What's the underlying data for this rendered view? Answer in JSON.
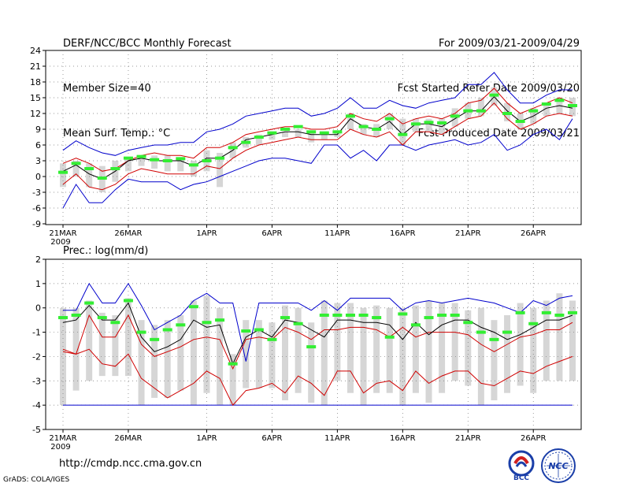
{
  "header": {
    "title": "DERF/NCC/BCC Monthly Forecast",
    "member_size": "Member Size=40",
    "variable": "Mean Surf. Temp.: °C",
    "forecast_period": "For 2009/03/21-2009/04/29",
    "start_date": "Fcst Started Refer Date 2009/03/20",
    "produced_date": "Fcst Produced Date 2009/03/21"
  },
  "footer": {
    "url": "http://cmdp.ncc.cma.gov.cn",
    "credit": "GrADS: COLA/IGES",
    "logo_bcc": "BCC",
    "logo_ncc": "NCC"
  },
  "colors": {
    "envelope": "#0000cc",
    "percentile": "#d00000",
    "mean": "#000000",
    "median": "#33ee33",
    "box": "#d6d6d6",
    "grid": "#777777"
  },
  "chart_data": [
    {
      "type": "box-line",
      "title": "Mean Surf. Temp.: °C",
      "xlabel": "",
      "ylabel": "°C",
      "ylim": [
        -9,
        24
      ],
      "yticks": [
        -9,
        -6,
        -3,
        0,
        3,
        6,
        9,
        12,
        15,
        18,
        21,
        24
      ],
      "xticks": [
        {
          "day": 1,
          "label": "21MAR",
          "sublabel": "2009"
        },
        {
          "day": 6,
          "label": "26MAR"
        },
        {
          "day": 12,
          "label": "1APR"
        },
        {
          "day": 17,
          "label": "6APR"
        },
        {
          "day": 22,
          "label": "11APR"
        },
        {
          "day": 27,
          "label": "16APR"
        },
        {
          "day": 32,
          "label": "21APR"
        },
        {
          "day": 37,
          "label": "26APR"
        }
      ],
      "days": 40,
      "grid": true,
      "series": [
        {
          "name": "max",
          "values": [
            5,
            6.8,
            5.5,
            4.5,
            4,
            5,
            5.5,
            6,
            6,
            6.5,
            6.5,
            8.5,
            9,
            10,
            11.5,
            12,
            12.5,
            13,
            13,
            11.5,
            12,
            13,
            15,
            13,
            13,
            14.5,
            13.5,
            13,
            14,
            14.5,
            15,
            17.5,
            17.5,
            19.8,
            16.5,
            14,
            14,
            15.5,
            16.5,
            16.5
          ]
        },
        {
          "name": "p90",
          "values": [
            2.5,
            3.5,
            2.5,
            1,
            1.5,
            3,
            4,
            4.5,
            4,
            4,
            3.5,
            5.5,
            5.5,
            6.5,
            8,
            8.5,
            9,
            9.5,
            9.5,
            9,
            9,
            9.5,
            12,
            11,
            10.5,
            12,
            10,
            11,
            11.5,
            11,
            12,
            14,
            14.5,
            16.8,
            14,
            12,
            13,
            14,
            15,
            14
          ]
        },
        {
          "name": "mean",
          "values": [
            1,
            2.2,
            0.5,
            -0.5,
            1,
            3,
            3.5,
            3,
            3,
            3,
            2,
            3.5,
            3.5,
            5,
            7,
            7.5,
            8,
            8.5,
            8.5,
            8,
            8,
            8,
            11,
            9.5,
            9,
            10.5,
            8,
            10,
            10,
            9.5,
            11,
            12.5,
            12.5,
            15.2,
            12.5,
            10.5,
            11.5,
            13,
            13.5,
            13
          ]
        },
        {
          "name": "median",
          "values": [
            0.8,
            2.5,
            1.5,
            -0.3,
            1.5,
            3.5,
            3.8,
            3.2,
            3,
            3.4,
            2.2,
            3,
            3.5,
            5.5,
            6.5,
            7.5,
            8.3,
            9,
            9.5,
            8.5,
            8.3,
            8.5,
            11.5,
            9.5,
            9,
            11,
            8,
            10,
            10.3,
            10.2,
            11.5,
            12.5,
            12.5,
            15.5,
            12,
            10.5,
            12.5,
            13.8,
            14.5,
            13.5
          ]
        },
        {
          "name": "p10",
          "values": [
            -1.5,
            0.5,
            -2,
            -2.5,
            -1.5,
            0.5,
            1.5,
            1,
            0.5,
            0.5,
            0.5,
            2,
            1.5,
            3.5,
            5,
            6,
            6.5,
            7,
            7.5,
            7,
            7,
            7,
            9,
            8,
            7.5,
            8.5,
            6,
            8.5,
            8.5,
            8,
            9.5,
            11,
            11.5,
            14,
            11,
            9,
            10,
            11.5,
            12,
            11.5
          ]
        },
        {
          "name": "min",
          "values": [
            -6,
            -1.5,
            -5,
            -5,
            -2.5,
            -0.5,
            -1,
            -1,
            -1,
            -2.5,
            -1.5,
            -1,
            0,
            1,
            2,
            3,
            3.5,
            3.5,
            3,
            2.5,
            6,
            6,
            3.5,
            5,
            3,
            6,
            6,
            5,
            6,
            6.5,
            7,
            6,
            6.5,
            8,
            5,
            6,
            8,
            9,
            7,
            11
          ]
        },
        {
          "name": "box_high",
          "values": [
            2.5,
            3,
            2.5,
            2,
            3,
            3.5,
            4,
            4,
            4,
            3.5,
            3,
            5,
            4.5,
            6.5,
            7.5,
            8,
            8.5,
            8.5,
            9,
            8.5,
            8.5,
            8.5,
            12,
            10,
            10,
            12,
            11,
            11,
            11,
            11,
            13,
            14,
            15,
            17,
            14,
            12,
            13,
            14,
            15,
            15
          ]
        },
        {
          "name": "box_low",
          "values": [
            -2,
            0,
            -2,
            -3,
            -1,
            1,
            2,
            1.5,
            1,
            1,
            0,
            1,
            -2,
            3.5,
            5.5,
            6,
            7,
            7.5,
            7.5,
            6.5,
            7,
            7.5,
            9,
            8,
            7.5,
            9,
            6,
            8.5,
            8.5,
            8,
            9.5,
            11,
            11.5,
            13.5,
            10.5,
            9,
            10,
            11.5,
            12,
            11.5
          ]
        }
      ]
    },
    {
      "type": "box-line",
      "title": "Prec.: log(mm/d)",
      "xlabel": "",
      "ylabel": "log(mm/d)",
      "ylim": [
        -5,
        2
      ],
      "yticks": [
        -5,
        -4,
        -3,
        -2,
        -1,
        0,
        1,
        2
      ],
      "xticks": [
        {
          "day": 1,
          "label": "21MAR",
          "sublabel": "2009"
        },
        {
          "day": 6,
          "label": "26MAR"
        },
        {
          "day": 12,
          "label": "1APR"
        },
        {
          "day": 17,
          "label": "6APR"
        },
        {
          "day": 22,
          "label": "11APR"
        },
        {
          "day": 27,
          "label": "16APR"
        },
        {
          "day": 32,
          "label": "21APR"
        },
        {
          "day": 37,
          "label": "26APR"
        }
      ],
      "days": 40,
      "grid": true,
      "series": [
        {
          "name": "max",
          "values": [
            -0.1,
            -0.1,
            1,
            0.2,
            0.2,
            1,
            0.1,
            -0.9,
            -0.6,
            -0.3,
            0.3,
            0.6,
            0.2,
            0.2,
            -2.2,
            0.2,
            0.2,
            0.2,
            0.2,
            -0.1,
            0.3,
            -0.1,
            0.4,
            0.4,
            0.4,
            0.4,
            -0.1,
            0.2,
            0.3,
            0.2,
            0.3,
            0.4,
            0.3,
            0.2,
            0,
            -0.2,
            0.3,
            0.1,
            0.4,
            0.5
          ]
        },
        {
          "name": "mean",
          "values": [
            -0.6,
            -0.5,
            0.1,
            -0.5,
            -0.5,
            0.2,
            -1.2,
            -1.8,
            -1.6,
            -1.3,
            -0.5,
            -0.8,
            -0.7,
            -2.3,
            -1.2,
            -0.9,
            -1.2,
            -0.5,
            -0.6,
            -0.9,
            -1.2,
            -0.5,
            -0.5,
            -0.6,
            -0.6,
            -0.7,
            -1.3,
            -0.6,
            -1.1,
            -0.7,
            -0.5,
            -0.5,
            -0.8,
            -1,
            -1.3,
            -1.1,
            -0.8,
            -0.5,
            -0.5,
            -0.3
          ]
        },
        {
          "name": "median",
          "values": [
            -0.4,
            -0.3,
            0.2,
            -0.4,
            -0.6,
            0.3,
            -1,
            -1.3,
            -0.9,
            -0.7,
            0.05,
            -0.6,
            -0.5,
            -2.3,
            -0.95,
            -0.9,
            -1.3,
            -0.4,
            -0.65,
            -1.6,
            -0.3,
            -0.3,
            -0.3,
            -0.3,
            -0.4,
            -1.2,
            -0.25,
            -0.7,
            -0.4,
            -0.3,
            -0.3,
            -0.6,
            -1,
            -1.3,
            -1,
            -0.2,
            -0.65,
            -0.2,
            -0.3,
            -0.2
          ]
        },
        {
          "name": "p10",
          "values": [
            -1.7,
            -1.9,
            -0.3,
            -1.2,
            -1.2,
            -0.3,
            -1.5,
            -2,
            -1.8,
            -1.6,
            -1.3,
            -1.2,
            -1.3,
            -2.5,
            -1.3,
            -1.2,
            -1.3,
            -0.8,
            -1,
            -1.3,
            -0.9,
            -0.9,
            -0.8,
            -0.8,
            -0.9,
            -1.2,
            -0.8,
            -1.2,
            -1,
            -1,
            -1,
            -1.1,
            -1.5,
            -1.8,
            -1.5,
            -1.2,
            -1.1,
            -0.9,
            -0.9,
            -0.6
          ]
        },
        {
          "name": "min",
          "values": [
            -1.8,
            -1.9,
            -1.7,
            -2.3,
            -2.4,
            -1.9,
            -2.9,
            -3.3,
            -3.7,
            -3.4,
            -3.1,
            -2.6,
            -2.9,
            -4,
            -3.4,
            -3.3,
            -3.1,
            -3.5,
            -2.8,
            -3.1,
            -3.6,
            -2.6,
            -2.6,
            -3.5,
            -3.1,
            -3,
            -3.4,
            -2.6,
            -3.1,
            -2.8,
            -2.6,
            -2.6,
            -3.1,
            -3.2,
            -2.9,
            -2.6,
            -2.7,
            -2.4,
            -2.2,
            -2
          ]
        },
        {
          "name": "floor",
          "values": [
            -4,
            -4,
            -4,
            -4,
            -4,
            -4,
            -4,
            -4,
            -4,
            -4,
            -4,
            -4,
            -4,
            -4,
            -4,
            -4,
            -4,
            -4,
            -4,
            -4,
            -4,
            -4,
            -4,
            -4,
            -4,
            -4,
            -4,
            -4,
            -4,
            -4,
            -4,
            -4,
            -4,
            -4,
            -4,
            -4,
            -4,
            -4,
            -4,
            -4
          ]
        },
        {
          "name": "box_high",
          "values": [
            0,
            0,
            0.3,
            -0.2,
            -0.3,
            0.4,
            -0.5,
            -0.7,
            -0.5,
            -0.3,
            0.3,
            0.5,
            0,
            -1.9,
            -0.5,
            -0.5,
            -0.6,
            0.1,
            0,
            -0.6,
            0.3,
            0.2,
            0.2,
            0,
            0.1,
            0,
            0,
            0.1,
            0.3,
            0.2,
            0.2,
            -0.1,
            0,
            -0.5,
            -0.3,
            0.2,
            0,
            0.3,
            0.6,
            0.3
          ]
        },
        {
          "name": "box_low",
          "values": [
            -4,
            -3.4,
            -3,
            -2.8,
            -2.8,
            -2.8,
            -4,
            -3.7,
            -3.7,
            -3.4,
            -4,
            -3.5,
            -4,
            -4,
            -3.3,
            -3.3,
            -3.3,
            -3.8,
            -3.5,
            -3.9,
            -4,
            -3,
            -3.5,
            -4,
            -3.5,
            -3.5,
            -4,
            -3.5,
            -3.9,
            -3.5,
            -3,
            -3.2,
            -4,
            -3.8,
            -3.5,
            -3.2,
            -3.5,
            -3,
            -3,
            -3
          ]
        }
      ]
    }
  ]
}
